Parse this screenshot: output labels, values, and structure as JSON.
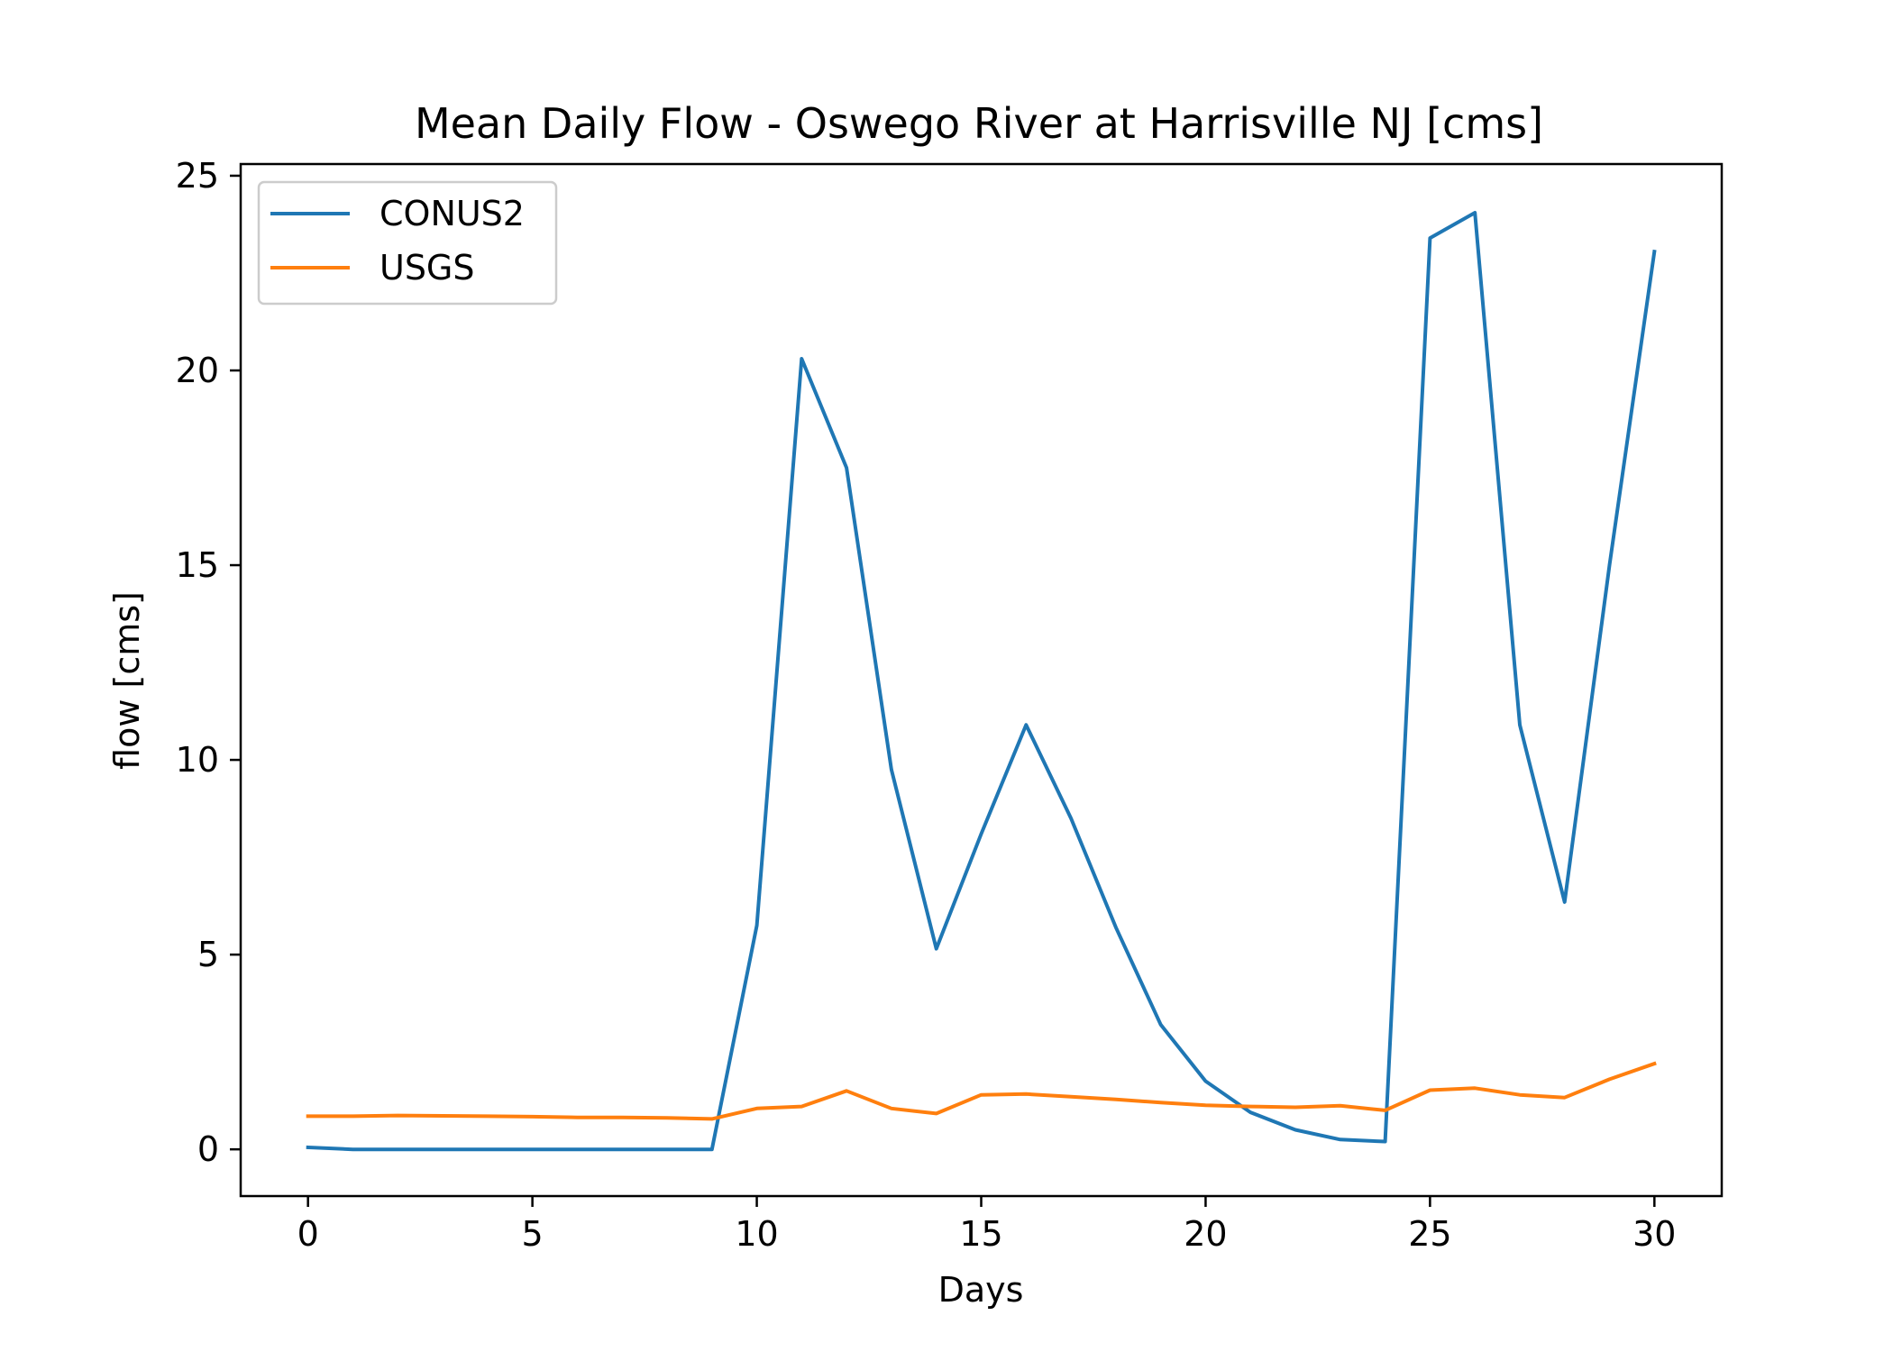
{
  "chart_data": {
    "type": "line",
    "title": "Mean Daily Flow - Oswego River at Harrisville NJ [cms]",
    "xlabel": "Days",
    "ylabel": "flow [cms]",
    "xlim": [
      -1.5,
      31.5
    ],
    "ylim": [
      -1.2,
      25.3
    ],
    "xticks": [
      0,
      5,
      10,
      15,
      20,
      25,
      30
    ],
    "yticks": [
      0,
      5,
      10,
      15,
      20,
      25
    ],
    "grid": false,
    "legend_position": "top-left",
    "x": [
      0,
      1,
      2,
      3,
      4,
      5,
      6,
      7,
      8,
      9,
      10,
      11,
      12,
      13,
      14,
      15,
      16,
      17,
      18,
      19,
      20,
      21,
      22,
      23,
      24,
      25,
      26,
      27,
      28,
      29,
      30
    ],
    "series": [
      {
        "name": "CONUS2",
        "color": "#1f77b4",
        "values": [
          0.05,
          0.0,
          0.0,
          0.0,
          0.0,
          0.0,
          0.0,
          0.0,
          0.0,
          0.0,
          5.75,
          20.3,
          17.5,
          9.75,
          5.15,
          8.1,
          10.9,
          8.5,
          5.7,
          3.2,
          1.75,
          0.95,
          0.5,
          0.25,
          0.2,
          23.4,
          24.05,
          10.9,
          6.35,
          15.0,
          23.05
        ]
      },
      {
        "name": "USGS",
        "color": "#ff7f0e",
        "values": [
          0.85,
          0.85,
          0.87,
          0.86,
          0.85,
          0.84,
          0.82,
          0.82,
          0.81,
          0.78,
          1.05,
          1.1,
          1.5,
          1.05,
          0.92,
          1.4,
          1.42,
          1.35,
          1.28,
          1.2,
          1.13,
          1.1,
          1.08,
          1.12,
          1.0,
          1.52,
          1.57,
          1.4,
          1.33,
          1.8,
          2.2
        ]
      }
    ]
  }
}
